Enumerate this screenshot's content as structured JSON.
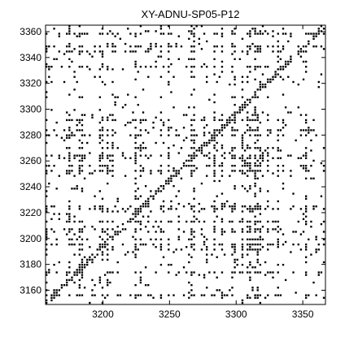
{
  "chart_data": {
    "type": "heatmap",
    "title": "XY-ADNU-SP05-P12",
    "xlabel": "",
    "ylabel": "",
    "xlim": [
      3157,
      3367
    ],
    "ylim": [
      3149,
      3365
    ],
    "xticks": [
      3200,
      3250,
      3300,
      3350
    ],
    "yticks": [
      3160,
      3180,
      3200,
      3220,
      3240,
      3260,
      3280,
      3300,
      3320,
      3340,
      3360
    ],
    "xtick_labels": [
      "3200",
      "3250",
      "3300",
      "3350"
    ],
    "ytick_labels": [
      "3160",
      "3180",
      "3200",
      "3220",
      "3240",
      "3260",
      "3280",
      "3300",
      "3320",
      "3340",
      "3360"
    ],
    "value_encoding": "binary",
    "colors": {
      "filled": "#000000",
      "empty": "#ffffff"
    },
    "grid": false,
    "legend": "none"
  }
}
